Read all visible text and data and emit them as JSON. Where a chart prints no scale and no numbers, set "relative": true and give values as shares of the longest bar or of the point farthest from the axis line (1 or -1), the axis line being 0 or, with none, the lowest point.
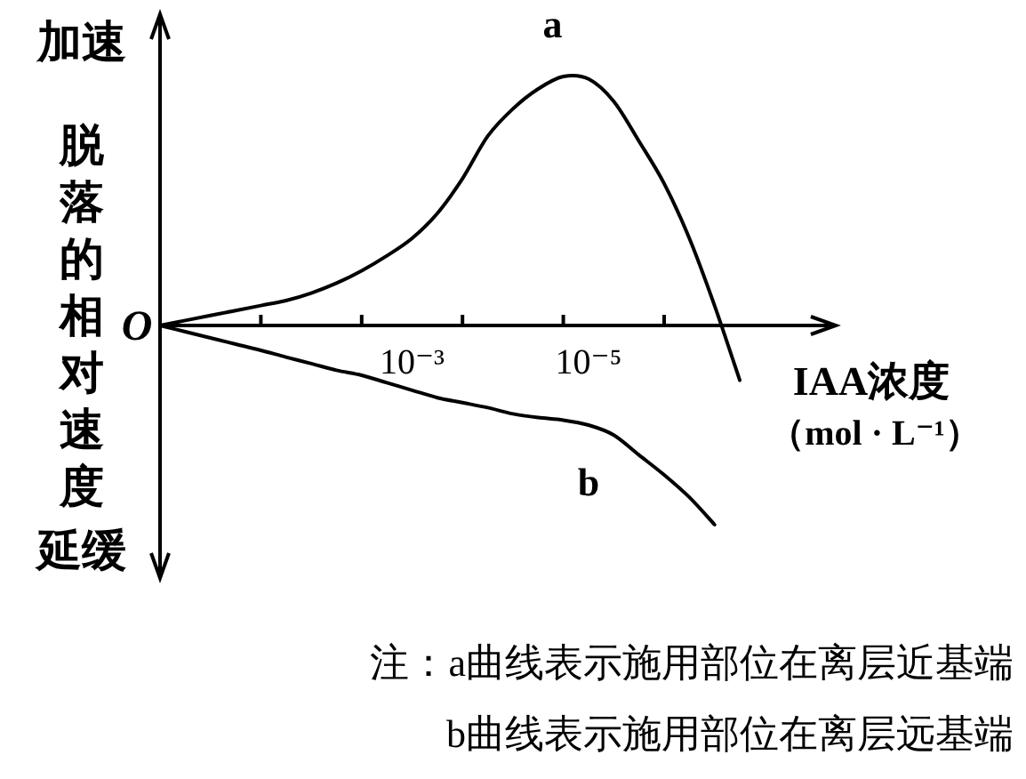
{
  "chart_data": {
    "type": "line",
    "relative": true,
    "ylabel": "脱落的相对速度",
    "xlabel": "IAA浓度（mol · L⁻¹）",
    "categories": [
      null,
      null,
      null,
      null,
      null,
      null,
      null,
      null,
      null,
      null,
      "10⁻³",
      null,
      null,
      null,
      null,
      null,
      null,
      "10⁻⁵",
      null,
      null,
      null,
      null,
      null,
      null,
      null,
      null,
      null
    ],
    "series": [
      {
        "name": "a",
        "color": "#000000",
        "values": [
          0,
          0.02,
          0.04,
          0.06,
          0.08,
          0.1,
          0.13,
          0.17,
          0.22,
          0.28,
          0.35,
          0.45,
          0.59,
          0.76,
          0.87,
          0.95,
          1,
          0.99,
          0.9,
          0.74,
          0.57,
          0.35,
          0.08,
          -0.22,
          null,
          null,
          null
        ]
      },
      {
        "name": "b",
        "color": "#000000",
        "values": [
          0,
          -0.025,
          -0.05,
          -0.075,
          -0.1,
          -0.127,
          -0.153,
          -0.18,
          -0.2,
          -0.23,
          -0.26,
          -0.29,
          -0.31,
          -0.33,
          -0.355,
          -0.37,
          -0.38,
          -0.4,
          -0.44,
          -0.52,
          -0.6,
          -0.69,
          -0.8,
          null,
          null,
          null,
          null
        ]
      }
    ],
    "annotations": [
      "加速",
      "延缓",
      "O",
      "注：a曲线表示施用部位在离层近基端",
      "b曲线表示施用部位在离层远基端"
    ]
  }
}
